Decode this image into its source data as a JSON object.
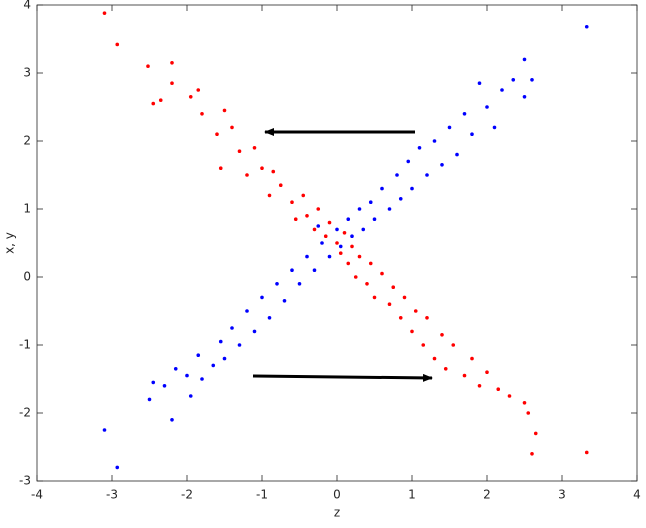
{
  "chart_data": {
    "type": "scatter",
    "xlabel": "z",
    "ylabel": "x, y",
    "xlim": [
      -4,
      4
    ],
    "ylim": [
      -3,
      4
    ],
    "xticks": [
      -4,
      -3,
      -2,
      -1,
      0,
      1,
      2,
      3,
      4
    ],
    "yticks": [
      -3,
      -2,
      -1,
      0,
      1,
      2,
      3,
      4
    ],
    "series": [
      {
        "color": "#0000ff",
        "x": [
          -3.1,
          -2.93,
          -2.5,
          -2.45,
          -2.3,
          -2.2,
          -2.15,
          -2.0,
          -1.95,
          -1.85,
          -1.8,
          -1.65,
          -1.55,
          -1.5,
          -1.4,
          -1.3,
          -1.2,
          -1.1,
          -1.0,
          -0.9,
          -0.8,
          -0.7,
          -0.6,
          -0.5,
          -0.4,
          -0.3,
          -0.2,
          -0.1,
          0,
          0.05,
          0.15,
          0.2,
          0.3,
          0.35,
          0.45,
          0.5,
          0.6,
          0.7,
          0.8,
          0.85,
          0.95,
          1.0,
          1.1,
          1.2,
          1.3,
          1.4,
          1.5,
          1.6,
          1.7,
          1.8,
          1.9,
          2.0,
          2.1,
          2.2,
          2.35,
          2.5,
          2.5,
          2.6,
          3.33,
          -0.25
        ],
        "values": [
          -2.25,
          -2.8,
          -1.8,
          -1.55,
          -1.6,
          -2.1,
          -1.35,
          -1.45,
          -1.75,
          -1.15,
          -1.5,
          -1.3,
          -0.95,
          -1.2,
          -0.75,
          -1.0,
          -0.5,
          -0.8,
          -0.3,
          -0.6,
          -0.1,
          -0.35,
          0.1,
          -0.1,
          0.3,
          0.1,
          0.5,
          0.3,
          0.7,
          0.45,
          0.85,
          0.6,
          1.0,
          0.7,
          1.1,
          0.85,
          1.3,
          1.0,
          1.5,
          1.15,
          1.7,
          1.3,
          1.9,
          1.5,
          2.0,
          1.65,
          2.2,
          1.8,
          2.4,
          2.1,
          2.85,
          2.5,
          2.2,
          2.75,
          2.9,
          2.65,
          3.2,
          2.9,
          3.68,
          0.75
        ]
      },
      {
        "color": "#ff0000",
        "x": [
          -3.1,
          -2.93,
          -2.52,
          -2.2,
          -2.45,
          -2.35,
          -2.2,
          -1.95,
          -1.85,
          -1.8,
          -1.6,
          -1.5,
          -1.4,
          -1.3,
          -1.55,
          -1.2,
          -1.1,
          -1.0,
          -0.9,
          -0.85,
          -0.75,
          -0.6,
          -0.55,
          -0.45,
          -0.4,
          -0.3,
          -0.25,
          -0.15,
          -0.1,
          0,
          0.05,
          0.1,
          0.15,
          0.2,
          0.25,
          0.3,
          0.4,
          0.45,
          0.5,
          0.6,
          0.7,
          0.75,
          0.85,
          0.9,
          1.0,
          1.05,
          1.15,
          1.2,
          1.3,
          1.4,
          1.45,
          1.55,
          1.7,
          1.8,
          1.9,
          2.0,
          2.15,
          2.3,
          2.5,
          2.55,
          2.6,
          2.65,
          3.33
        ],
        "values": [
          3.88,
          3.42,
          3.1,
          3.15,
          2.55,
          2.6,
          2.85,
          2.65,
          2.75,
          2.4,
          2.1,
          2.45,
          2.2,
          1.85,
          1.6,
          1.5,
          1.9,
          1.6,
          1.2,
          1.55,
          1.35,
          1.1,
          0.85,
          1.2,
          0.9,
          0.7,
          1.0,
          0.6,
          0.8,
          0.5,
          0.35,
          0.65,
          0.2,
          0.45,
          0.0,
          0.3,
          -0.1,
          0.2,
          -0.3,
          0.05,
          -0.4,
          -0.15,
          -0.6,
          -0.3,
          -0.8,
          -0.5,
          -1.0,
          -0.6,
          -1.2,
          -0.85,
          -1.35,
          -1.0,
          -1.45,
          -1.2,
          -1.6,
          -1.4,
          -1.65,
          -1.75,
          -1.85,
          -2.0,
          -2.6,
          -2.3,
          -2.58
        ]
      }
    ]
  }
}
